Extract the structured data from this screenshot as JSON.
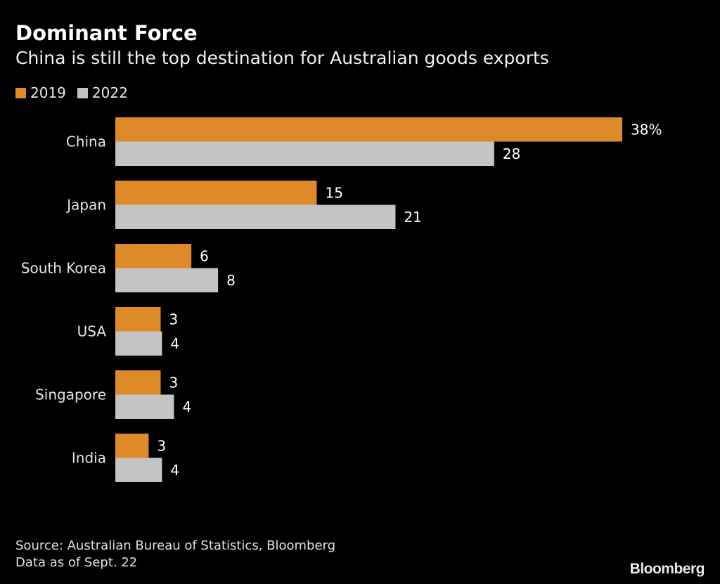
{
  "chart_data": {
    "type": "bar",
    "orientation": "horizontal",
    "title": "Dominant Force",
    "subtitle": "China is still the top destination for Australian goods exports",
    "categories": [
      "China",
      "Japan",
      "South Korea",
      "USA",
      "Singapore",
      "India"
    ],
    "series": [
      {
        "name": "2019",
        "color": "#DE8A28",
        "values": [
          38,
          15.1,
          5.7,
          3.4,
          3.4,
          2.5
        ],
        "labels": [
          "38%",
          "15",
          "6",
          "3",
          "3",
          "3"
        ]
      },
      {
        "name": "2022",
        "color": "#C4C4C4",
        "values": [
          28.4,
          21,
          7.7,
          3.5,
          4.4,
          3.5
        ],
        "labels": [
          "28",
          "21",
          "8",
          "4",
          "4",
          "4"
        ]
      }
    ],
    "unit": "%",
    "xlim": [
      0,
      40
    ],
    "grid": false,
    "legend_position": "top-left",
    "source": "Source: Australian Bureau of Statistics, Bloomberg",
    "note": "Data as of Sept. 22",
    "logo": "Bloomberg"
  }
}
